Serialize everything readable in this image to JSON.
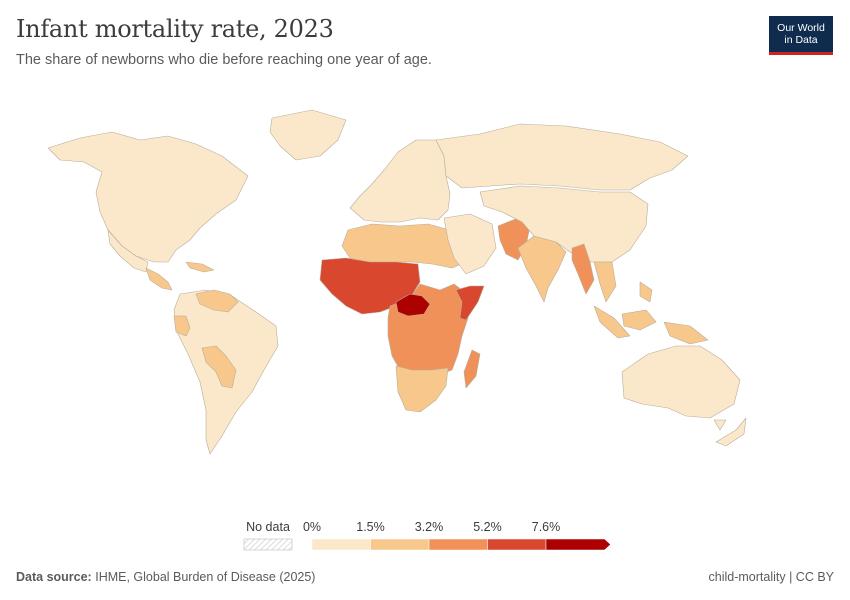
{
  "header": {
    "title": "Infant mortality rate, 2023",
    "subtitle": "The share of newborns who die before reaching one year of age.",
    "logo_line1": "Our World",
    "logo_line2": "in Data"
  },
  "legend": {
    "no_data_label": "No data",
    "ticks": [
      "0%",
      "1.5%",
      "3.2%",
      "5.2%",
      "7.6%"
    ],
    "colors": [
      "#fbe7c9",
      "#f8c78b",
      "#f0915a",
      "#d9472f",
      "#ad0000"
    ]
  },
  "footer": {
    "source_label": "Data source:",
    "source_text": "IHME, Global Burden of Disease (2025)",
    "right_text": "child-mortality | CC BY"
  },
  "map_data": {
    "type": "choropleth",
    "regions": [
      {
        "name": "North America",
        "bin": 0
      },
      {
        "name": "Greenland",
        "bin": 0
      },
      {
        "name": "Mexico",
        "bin": 0
      },
      {
        "name": "Central America",
        "bin": 1
      },
      {
        "name": "Caribbean",
        "bin": 1
      },
      {
        "name": "South America",
        "bin": 0
      },
      {
        "name": "Venezuela",
        "bin": 1
      },
      {
        "name": "Peru",
        "bin": 1
      },
      {
        "name": "Bolivia",
        "bin": 1
      },
      {
        "name": "Europe",
        "bin": 0
      },
      {
        "name": "Russia",
        "bin": 0
      },
      {
        "name": "North Africa",
        "bin": 1
      },
      {
        "name": "West Africa",
        "bin": 3
      },
      {
        "name": "Central African Republic",
        "bin": 4
      },
      {
        "name": "Somalia",
        "bin": 3
      },
      {
        "name": "Central & East Africa",
        "bin": 2
      },
      {
        "name": "Southern Africa",
        "bin": 1
      },
      {
        "name": "Madagascar",
        "bin": 2
      },
      {
        "name": "Middle East",
        "bin": 0
      },
      {
        "name": "Pakistan & Afghanistan",
        "bin": 2
      },
      {
        "name": "India",
        "bin": 1
      },
      {
        "name": "Myanmar",
        "bin": 2
      },
      {
        "name": "China & East Asia",
        "bin": 0
      },
      {
        "name": "Southeast Asia",
        "bin": 1
      },
      {
        "name": "Australia",
        "bin": 0
      }
    ]
  }
}
